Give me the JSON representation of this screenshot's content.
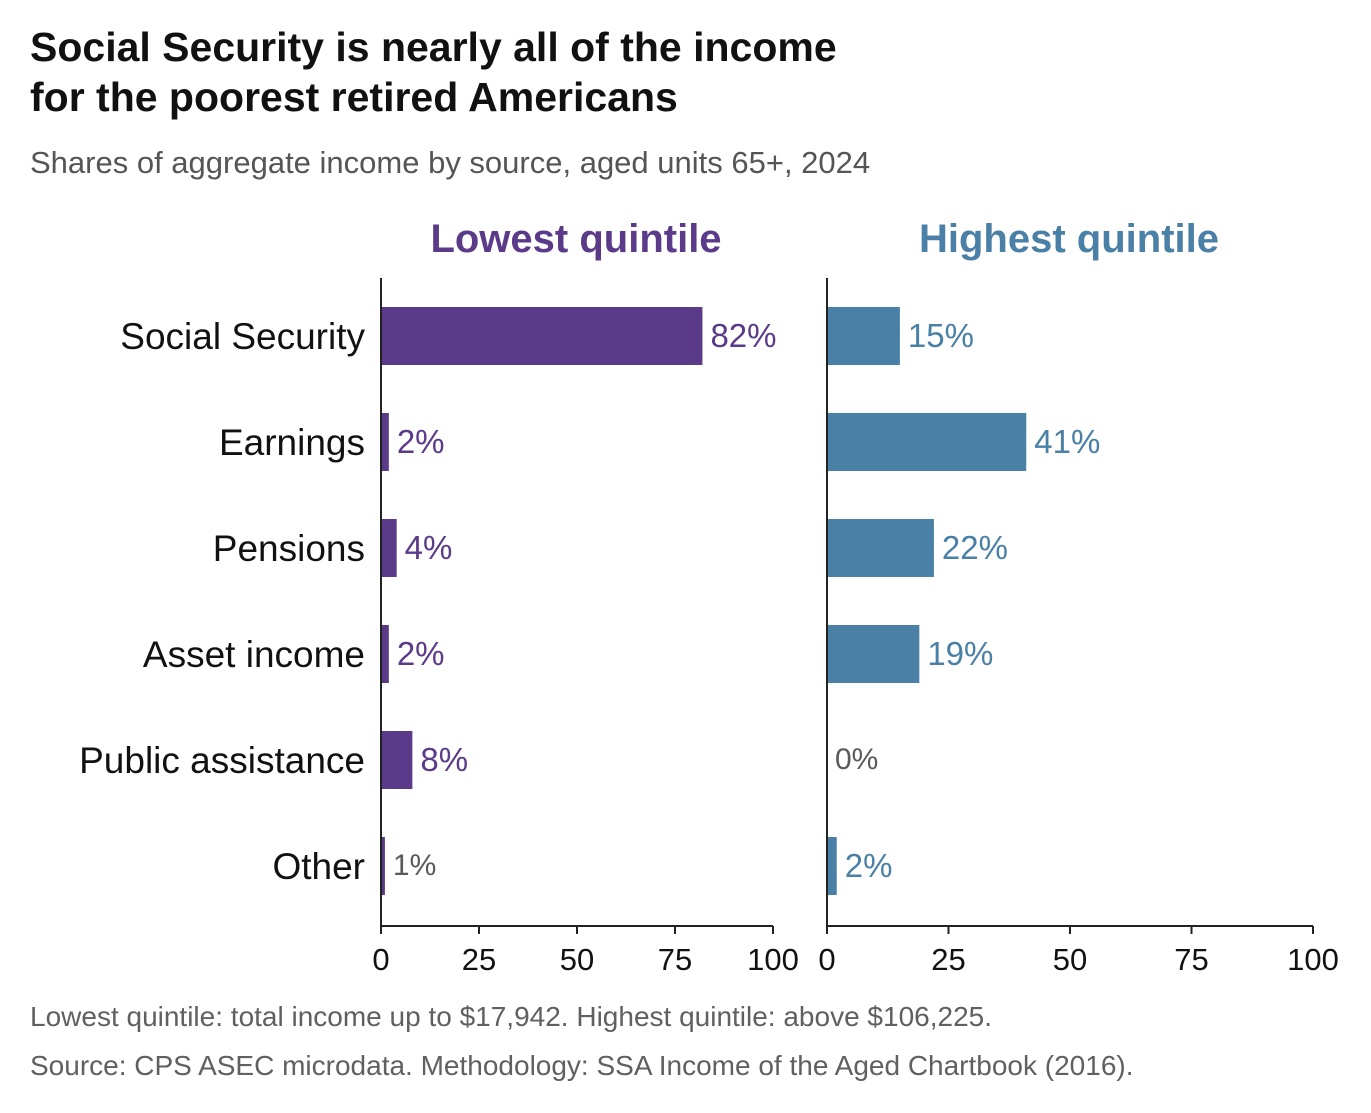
{
  "title_lines": [
    "Social Security is nearly all of the income",
    "for the poorest retired Americans"
  ],
  "subtitle": "Shares of aggregate income by source, aged units 65+, 2024",
  "notes": [
    "Lowest quintile: total income up to $17,942. Highest quintile: above $106,225.",
    "Source: CPS ASEC microdata. Methodology: SSA Income of the Aged Chartbook (2016)."
  ],
  "colors": {
    "lowest": "#5b3a89",
    "highest": "#4a80a6",
    "muted_label": "#5a5a5a",
    "axis": "#222222"
  },
  "chart_data": {
    "type": "bar",
    "orientation": "horizontal",
    "categories": [
      "Social Security",
      "Earnings",
      "Pensions",
      "Asset income",
      "Public assistance",
      "Other"
    ],
    "series": [
      {
        "name": "Lowest quintile",
        "values": [
          82,
          2,
          4,
          2,
          8,
          1
        ],
        "labels": [
          "82%",
          "2%",
          "4%",
          "2%",
          "8%",
          "1%"
        ],
        "color": "#5b3a89"
      },
      {
        "name": "Highest quintile",
        "values": [
          15,
          41,
          22,
          19,
          0,
          2
        ],
        "labels": [
          "15%",
          "41%",
          "22%",
          "19%",
          "0%",
          "2%"
        ],
        "color": "#4a80a6"
      }
    ],
    "xlim": [
      0,
      100
    ],
    "xticks": [
      0,
      25,
      50,
      75,
      100
    ],
    "xtick_labels": [
      "0",
      "25",
      "50",
      "75",
      "100"
    ],
    "small_value_label_color": "#5a5a5a",
    "grid": false,
    "legend": "none (panel titles)"
  }
}
